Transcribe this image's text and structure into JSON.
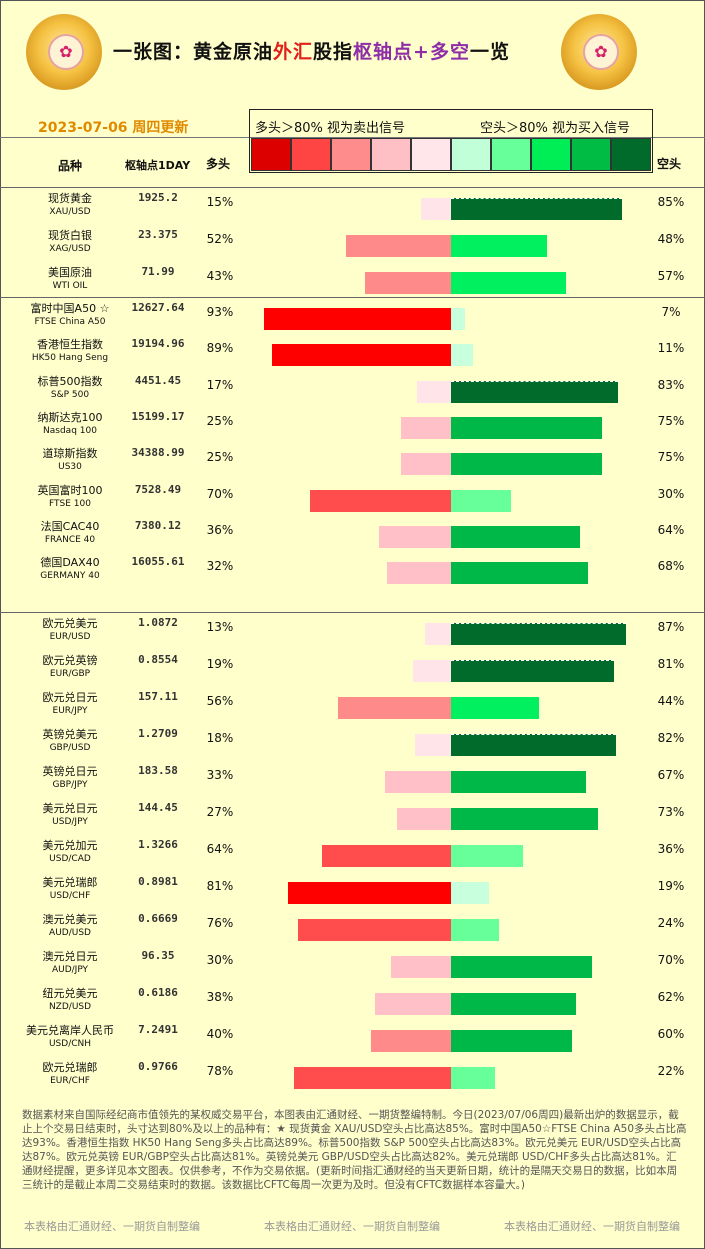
{
  "header": {
    "title_parts": [
      {
        "text": "一张图：黄金原油",
        "color": "black"
      },
      {
        "text": "外汇",
        "color": "red"
      },
      {
        "text": "股指",
        "color": "black"
      },
      {
        "text": "枢轴点+多空",
        "color": "purple"
      },
      {
        "text": "一览",
        "color": "black"
      }
    ],
    "date": "2023-07-06 周四更新",
    "legend_left": "多头＞80% 视为卖出信号",
    "legend_right": "空头＞80% 视为买入信号",
    "legend_colors": [
      "#dd0000",
      "#ff4444",
      "#ff8c8c",
      "#ffc0c5",
      "#ffe6ea",
      "#c0ffd8",
      "#66ff99",
      "#00ee55",
      "#00bb44",
      "#006b2a"
    ],
    "col_variety": "品种",
    "col_pivot": "枢轴点1DAY",
    "col_long": "多头",
    "col_short": "空头"
  },
  "chart_data": {
    "type": "bar",
    "rows": [
      {
        "name": "现货黄金",
        "code": "XAU/USD",
        "pivot": "1925.2",
        "long": 15,
        "short": 85
      },
      {
        "name": "现货白银",
        "code": "XAG/USD",
        "pivot": "23.375",
        "long": 52,
        "short": 48
      },
      {
        "name": "美国原油",
        "code": "WTI OIL",
        "pivot": "71.99",
        "long": 43,
        "short": 57
      },
      {
        "name": "富时中国A50 ☆",
        "code": "FTSE China A50",
        "pivot": "12627.64",
        "long": 93,
        "short": 7
      },
      {
        "name": "香港恒生指数",
        "code": "HK50 Hang Seng",
        "pivot": "19194.96",
        "long": 89,
        "short": 11
      },
      {
        "name": "标普500指数",
        "code": "S&P 500",
        "pivot": "4451.45",
        "long": 17,
        "short": 83
      },
      {
        "name": "纳斯达克100",
        "code": "Nasdaq 100",
        "pivot": "15199.17",
        "long": 25,
        "short": 75
      },
      {
        "name": "道琼斯指数",
        "code": "US30",
        "pivot": "34388.99",
        "long": 25,
        "short": 75
      },
      {
        "name": "英国富时100",
        "code": "FTSE 100",
        "pivot": "7528.49",
        "long": 70,
        "short": 30
      },
      {
        "name": "法国CAC40",
        "code": "FRANCE 40",
        "pivot": "7380.12",
        "long": 36,
        "short": 64
      },
      {
        "name": "德国DAX40",
        "code": "GERMANY 40",
        "pivot": "16055.61",
        "long": 32,
        "short": 68
      },
      {
        "name": "欧元兑美元",
        "code": "EUR/USD",
        "pivot": "1.0872",
        "long": 13,
        "short": 87
      },
      {
        "name": "欧元兑英镑",
        "code": "EUR/GBP",
        "pivot": "0.8554",
        "long": 19,
        "short": 81
      },
      {
        "name": "欧元兑日元",
        "code": "EUR/JPY",
        "pivot": "157.11",
        "long": 56,
        "short": 44
      },
      {
        "name": "英镑兑美元",
        "code": "GBP/USD",
        "pivot": "1.2709",
        "long": 18,
        "short": 82
      },
      {
        "name": "英镑兑日元",
        "code": "GBP/JPY",
        "pivot": "183.58",
        "long": 33,
        "short": 67
      },
      {
        "name": "美元兑日元",
        "code": "USD/JPY",
        "pivot": "144.45",
        "long": 27,
        "short": 73
      },
      {
        "name": "美元兑加元",
        "code": "USD/CAD",
        "pivot": "1.3266",
        "long": 64,
        "short": 36
      },
      {
        "name": "美元兑瑞郎",
        "code": "USD/CHF",
        "pivot": "0.8981",
        "long": 81,
        "short": 19
      },
      {
        "name": "澳元兑美元",
        "code": "AUD/USD",
        "pivot": "0.6669",
        "long": 76,
        "short": 24
      },
      {
        "name": "澳元兑日元",
        "code": "AUD/JPY",
        "pivot": "96.35",
        "long": 30,
        "short": 70
      },
      {
        "name": "纽元兑美元",
        "code": "NZD/USD",
        "pivot": "0.6186",
        "long": 38,
        "short": 62
      },
      {
        "name": "美元兑离岸人民币",
        "code": "USD/CNH",
        "pivot": "7.2491",
        "long": 40,
        "short": 60
      },
      {
        "name": "欧元兑瑞郎",
        "code": "EUR/CHF",
        "pivot": "0.9766",
        "long": 78,
        "short": 22
      }
    ]
  },
  "notes": "数据素材来自国际经纪商市值领先的某权威交易平台，本图表由汇通财经、一期货整编特制。今日(2023/07/06周四)最新出炉的数据显示，截止上个交易日结束时，头寸达到80%及以上的品种有：★ 现货黄金 XAU/USD空头占比高达85%。富时中国A50☆FTSE China A50多头占比高达93%。香港恒生指数 HK50 Hang Seng多头占比高达89%。标普500指数 S&P 500空头占比高达83%。欧元兑美元 EUR/USD空头占比高达87%。欧元兑英镑 EUR/GBP空头占比高达81%。英镑兑美元 GBP/USD空头占比高达82%。美元兑瑞郎 USD/CHF多头占比高达81%。汇通财经提醒，更多详见本文图表。仅供参考，不作为交易依据。(更新时间指汇通财经的当天更新日期，统计的是隔天交易日的数据，比如本周三统计的是截止本周二交易结束时的数据。该数据比CFTC每周一次更为及时。但没有CFTC数据样本容量大。)",
  "footer": [
    "本表格由汇通财经、一期货自制整编",
    "本表格由汇通财经、一期货自制整编",
    "本表格由汇通财经、一期货自制整编"
  ]
}
